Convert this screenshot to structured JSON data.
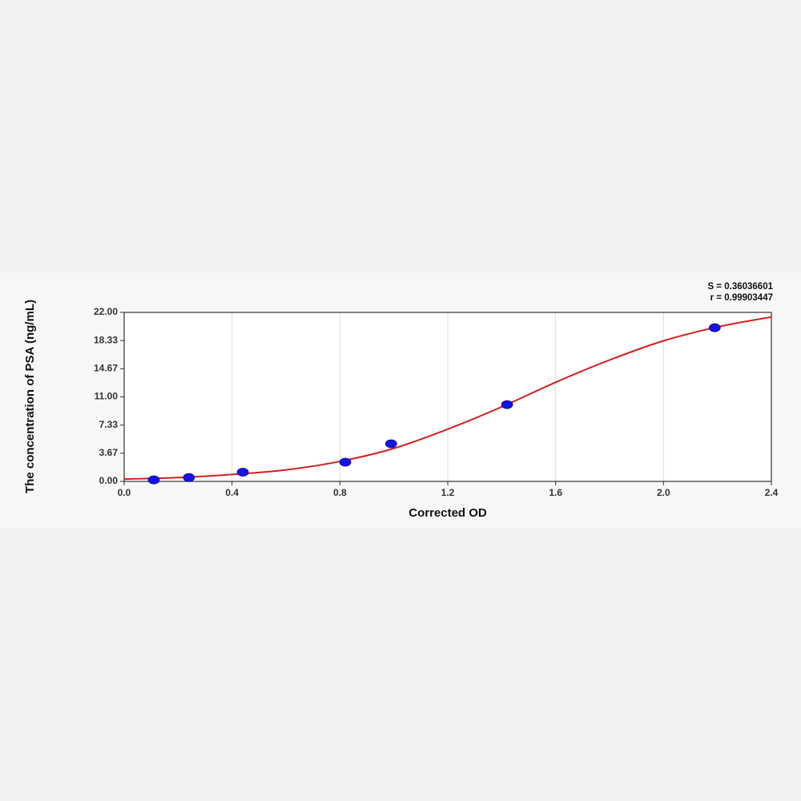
{
  "chart_data": {
    "type": "scatter",
    "annotations": [
      "S = 0.36036601",
      "r = 0.99903447"
    ],
    "x_label": "Corrected OD",
    "y_label": "The concentration of PSA (ng/mL)",
    "points": {
      "color": "#1414e6",
      "x": [
        0.11,
        0.24,
        0.44,
        0.82,
        0.99,
        1.42,
        2.19
      ],
      "values": [
        0.2,
        0.5,
        1.2,
        2.5,
        4.9,
        10.0,
        20.0
      ]
    },
    "curve": {
      "color": "#d42020",
      "x": [
        0.0,
        0.2,
        0.4,
        0.6,
        0.8,
        1.0,
        1.2,
        1.4,
        1.6,
        1.8,
        2.0,
        2.2,
        2.4
      ],
      "values": [
        0.3,
        0.5,
        0.9,
        1.5,
        2.6,
        4.3,
        6.8,
        9.7,
        12.9,
        15.8,
        18.3,
        20.1,
        21.4
      ]
    },
    "xlim": [
      0,
      2.4
    ],
    "ylim": [
      0,
      22
    ],
    "xticks": [
      {
        "value": 0,
        "label": "0.0"
      },
      0.4,
      0.8,
      1.2,
      1.6,
      {
        "value": 2,
        "label": "2.0"
      },
      2.4
    ],
    "yticks": [
      {
        "value": 0,
        "label": "0.00"
      },
      {
        "value": 3.67,
        "label": "3.67"
      },
      {
        "value": 7.33,
        "label": "7.33"
      },
      {
        "value": 11,
        "label": "11.00"
      },
      {
        "value": 14.67,
        "label": "14.67"
      },
      {
        "value": 18.33,
        "label": "18.33"
      },
      {
        "value": 22,
        "label": "22.00"
      }
    ],
    "grid": true
  }
}
